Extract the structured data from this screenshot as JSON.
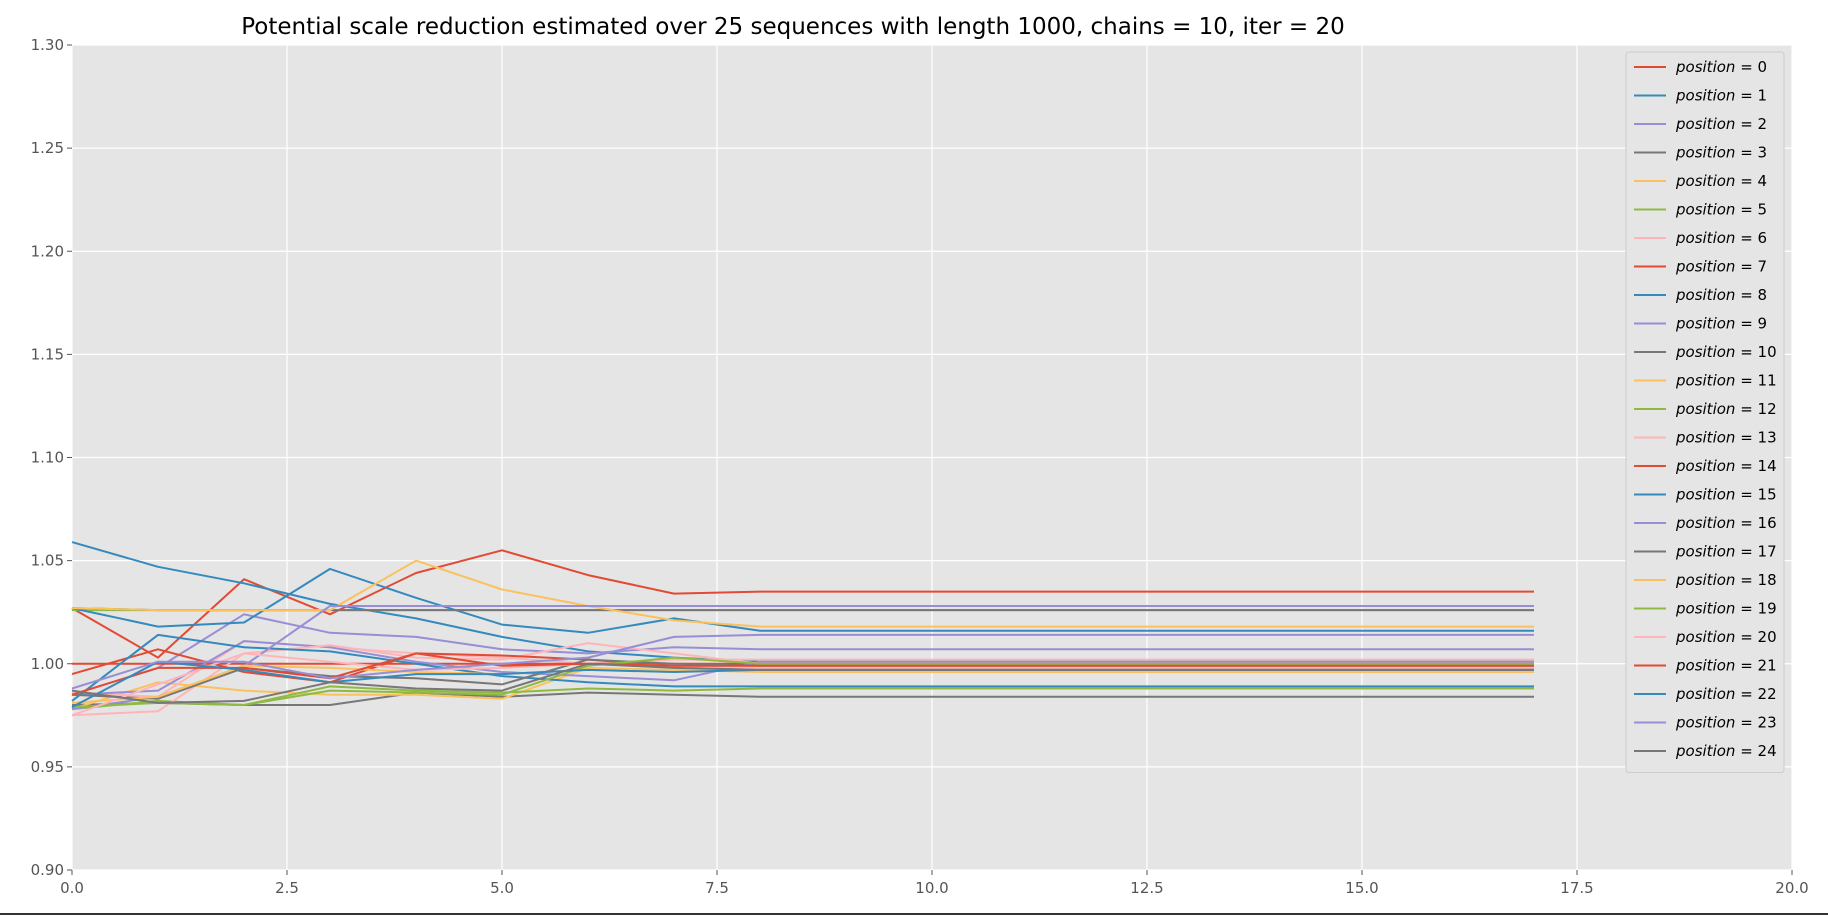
{
  "chart_data": {
    "type": "line",
    "title": "Potential scale reduction estimated over 25 sequences with length 1000, chains = 10, iter = 20",
    "xlabel": "",
    "ylabel": "",
    "xlim": [
      0,
      20
    ],
    "ylim": [
      0.9,
      1.3
    ],
    "x_ticks": [
      0.0,
      2.5,
      5.0,
      7.5,
      10.0,
      12.5,
      15.0,
      17.5,
      20.0
    ],
    "x_tick_labels": [
      "0.0",
      "2.5",
      "5.0",
      "7.5",
      "10.0",
      "12.5",
      "15.0",
      "17.5",
      "20.0"
    ],
    "y_ticks": [
      0.9,
      0.95,
      1.0,
      1.05,
      1.1,
      1.15,
      1.2,
      1.25,
      1.3
    ],
    "y_tick_labels": [
      "0.90",
      "0.95",
      "1.00",
      "1.05",
      "1.10",
      "1.15",
      "1.20",
      "1.25",
      "1.30"
    ],
    "grid": true,
    "legend_position": "top-right",
    "background_color": "#e5e5e5",
    "grid_color": "#ffffff",
    "x": [
      0,
      1,
      2,
      3,
      4,
      5,
      6,
      7,
      8,
      9,
      10,
      11,
      12,
      13,
      14,
      15,
      16,
      17
    ],
    "series": [
      {
        "var": "position",
        "eq": "=",
        "num": "0",
        "color": "#e24a33",
        "values": [
          1.027,
          1.003,
          1.041,
          1.024,
          1.044,
          1.055,
          1.043,
          1.034,
          1.035,
          1.035,
          1.035,
          1.035,
          1.035,
          1.035,
          1.035,
          1.035,
          1.035,
          1.035
        ]
      },
      {
        "var": "position",
        "eq": "=",
        "num": "1",
        "color": "#348abd",
        "values": [
          1.059,
          1.047,
          1.039,
          1.029,
          1.022,
          1.013,
          1.006,
          1.003,
          1.001,
          1.001,
          1.001,
          1.001,
          1.001,
          1.001,
          1.001,
          1.001,
          1.001,
          1.001
        ]
      },
      {
        "var": "position",
        "eq": "=",
        "num": "2",
        "color": "#988ed5",
        "values": [
          0.985,
          0.998,
          1.024,
          1.015,
          1.013,
          1.007,
          1.005,
          1.008,
          1.007,
          1.007,
          1.007,
          1.007,
          1.007,
          1.007,
          1.007,
          1.007,
          1.007,
          1.007
        ]
      },
      {
        "var": "position",
        "eq": "=",
        "num": "3",
        "color": "#777777",
        "values": [
          0.98,
          0.981,
          0.98,
          0.98,
          0.986,
          0.984,
          0.986,
          0.985,
          0.984,
          0.984,
          0.984,
          0.984,
          0.984,
          0.984,
          0.984,
          0.984,
          0.984,
          0.984
        ]
      },
      {
        "var": "position",
        "eq": "=",
        "num": "4",
        "color": "#fbc15e",
        "values": [
          0.978,
          0.991,
          0.987,
          0.985,
          0.985,
          0.983,
          0.998,
          0.997,
          0.996,
          0.996,
          0.996,
          0.996,
          0.996,
          0.996,
          0.996,
          0.996,
          0.996,
          0.996
        ]
      },
      {
        "var": "position",
        "eq": "=",
        "num": "5",
        "color": "#8eba42",
        "values": [
          1.026,
          1.026,
          1.026,
          1.026,
          1.026,
          1.026,
          1.026,
          1.026,
          1.026,
          1.026,
          1.026,
          1.026,
          1.026,
          1.026,
          1.026,
          1.026,
          1.026,
          1.026
        ]
      },
      {
        "var": "position",
        "eq": "=",
        "num": "6",
        "color": "#ffb5b8",
        "values": [
          0.986,
          0.984,
          1.011,
          1.008,
          1.005,
          1.003,
          1.0,
          1.002,
          1.002,
          1.002,
          1.002,
          1.002,
          1.002,
          1.002,
          1.002,
          1.002,
          1.002,
          1.002
        ]
      },
      {
        "var": "position",
        "eq": "=",
        "num": "7",
        "color": "#e24a33",
        "values": [
          1.0,
          1.0,
          1.0,
          1.0,
          1.0,
          1.0,
          1.0,
          1.0,
          1.0,
          1.0,
          1.0,
          1.0,
          1.0,
          1.0,
          1.0,
          1.0,
          1.0,
          1.0
        ]
      },
      {
        "var": "position",
        "eq": "=",
        "num": "8",
        "color": "#348abd",
        "values": [
          1.027,
          1.018,
          1.02,
          1.046,
          1.032,
          1.019,
          1.015,
          1.022,
          1.016,
          1.016,
          1.016,
          1.016,
          1.016,
          1.016,
          1.016,
          1.016,
          1.016,
          1.016
        ]
      },
      {
        "var": "position",
        "eq": "=",
        "num": "9",
        "color": "#988ed5",
        "values": [
          0.985,
          0.987,
          1.011,
          1.008,
          1.001,
          0.996,
          0.994,
          0.992,
          1.001,
          1.001,
          1.001,
          1.001,
          1.001,
          1.001,
          1.001,
          1.001,
          1.001,
          1.001
        ]
      },
      {
        "var": "position",
        "eq": "=",
        "num": "10",
        "color": "#777777",
        "values": [
          1.027,
          1.026,
          1.026,
          1.026,
          1.026,
          1.026,
          1.026,
          1.026,
          1.026,
          1.026,
          1.026,
          1.026,
          1.026,
          1.026,
          1.026,
          1.026,
          1.026,
          1.026
        ]
      },
      {
        "var": "position",
        "eq": "=",
        "num": "11",
        "color": "#fbc15e",
        "values": [
          1.027,
          1.026,
          1.026,
          1.026,
          1.05,
          1.036,
          1.028,
          1.021,
          1.018,
          1.018,
          1.018,
          1.018,
          1.018,
          1.018,
          1.018,
          1.018,
          1.018,
          1.018
        ]
      },
      {
        "var": "position",
        "eq": "=",
        "num": "12",
        "color": "#8eba42",
        "values": [
          0.978,
          0.982,
          0.98,
          0.989,
          0.987,
          0.986,
          0.988,
          0.987,
          0.988,
          0.988,
          0.988,
          0.988,
          0.988,
          0.988,
          0.988,
          0.988,
          0.988,
          0.988
        ]
      },
      {
        "var": "position",
        "eq": "=",
        "num": "13",
        "color": "#ffb5b8",
        "values": [
          0.975,
          0.977,
          1.005,
          1.009,
          1.003,
          1.002,
          1.01,
          1.005,
          1.0,
          1.0,
          1.0,
          1.0,
          1.0,
          1.0,
          1.0,
          1.0,
          1.0,
          1.0
        ]
      },
      {
        "var": "position",
        "eq": "=",
        "num": "14",
        "color": "#e24a33",
        "values": [
          0.995,
          1.007,
          0.996,
          0.991,
          1.005,
          1.004,
          1.002,
          0.999,
          0.998,
          0.998,
          0.998,
          0.998,
          0.998,
          0.998,
          0.998,
          0.998,
          0.998,
          0.998
        ]
      },
      {
        "var": "position",
        "eq": "=",
        "num": "15",
        "color": "#348abd",
        "values": [
          0.982,
          1.014,
          1.008,
          1.006,
          1.0,
          0.994,
          0.991,
          0.989,
          0.989,
          0.989,
          0.989,
          0.989,
          0.989,
          0.989,
          0.989,
          0.989,
          0.989,
          0.989
        ]
      },
      {
        "var": "position",
        "eq": "=",
        "num": "16",
        "color": "#988ed5",
        "values": [
          0.978,
          0.984,
          0.999,
          1.028,
          1.028,
          1.028,
          1.028,
          1.028,
          1.028,
          1.028,
          1.028,
          1.028,
          1.028,
          1.028,
          1.028,
          1.028,
          1.028,
          1.028
        ]
      },
      {
        "var": "position",
        "eq": "=",
        "num": "17",
        "color": "#777777",
        "values": [
          0.985,
          0.983,
          0.998,
          0.994,
          0.993,
          0.99,
          1.002,
          1.0,
          0.999,
          0.999,
          0.999,
          0.999,
          0.999,
          0.999,
          0.999,
          0.999,
          0.999,
          0.999
        ]
      },
      {
        "var": "position",
        "eq": "=",
        "num": "18",
        "color": "#fbc15e",
        "values": [
          0.981,
          0.984,
          0.999,
          0.998,
          0.996,
          0.995,
          0.997,
          0.996,
          0.997,
          0.997,
          0.997,
          0.997,
          0.997,
          0.997,
          0.997,
          0.997,
          0.997,
          0.997
        ]
      },
      {
        "var": "position",
        "eq": "=",
        "num": "19",
        "color": "#8eba42",
        "values": [
          0.979,
          0.981,
          0.98,
          0.987,
          0.986,
          0.985,
          0.999,
          1.003,
          1.0,
          1.0,
          1.0,
          1.0,
          1.0,
          1.0,
          1.0,
          1.0,
          1.0,
          1.0
        ]
      },
      {
        "var": "position",
        "eq": "=",
        "num": "20",
        "color": "#ffb5b8",
        "values": [
          0.975,
          0.99,
          1.005,
          1.001,
          0.997,
          0.998,
          1.0,
          0.999,
          0.998,
          0.998,
          0.998,
          0.998,
          0.998,
          0.998,
          0.998,
          0.998,
          0.998,
          0.998
        ]
      },
      {
        "var": "position",
        "eq": "=",
        "num": "21",
        "color": "#e24a33",
        "values": [
          0.985,
          0.998,
          0.998,
          0.993,
          1.005,
          0.999,
          1.0,
          0.999,
          0.999,
          0.999,
          0.999,
          0.999,
          0.999,
          0.999,
          0.999,
          0.999,
          0.999,
          0.999
        ]
      },
      {
        "var": "position",
        "eq": "=",
        "num": "22",
        "color": "#348abd",
        "values": [
          0.979,
          1.001,
          0.997,
          0.991,
          0.995,
          0.995,
          0.997,
          0.996,
          0.997,
          0.997,
          0.997,
          0.997,
          0.997,
          0.997,
          0.997,
          0.997,
          0.997,
          0.997
        ]
      },
      {
        "var": "position",
        "eq": "=",
        "num": "23",
        "color": "#988ed5",
        "values": [
          0.988,
          1.001,
          1.001,
          0.993,
          0.997,
          1.0,
          1.003,
          1.013,
          1.014,
          1.014,
          1.014,
          1.014,
          1.014,
          1.014,
          1.014,
          1.014,
          1.014,
          1.014
        ]
      },
      {
        "var": "position",
        "eq": "=",
        "num": "24",
        "color": "#777777",
        "values": [
          0.987,
          0.981,
          0.982,
          0.991,
          0.988,
          0.987,
          1.0,
          0.998,
          0.997,
          0.997,
          0.997,
          0.997,
          0.997,
          0.997,
          0.997,
          0.997,
          0.997,
          0.997
        ]
      }
    ]
  }
}
